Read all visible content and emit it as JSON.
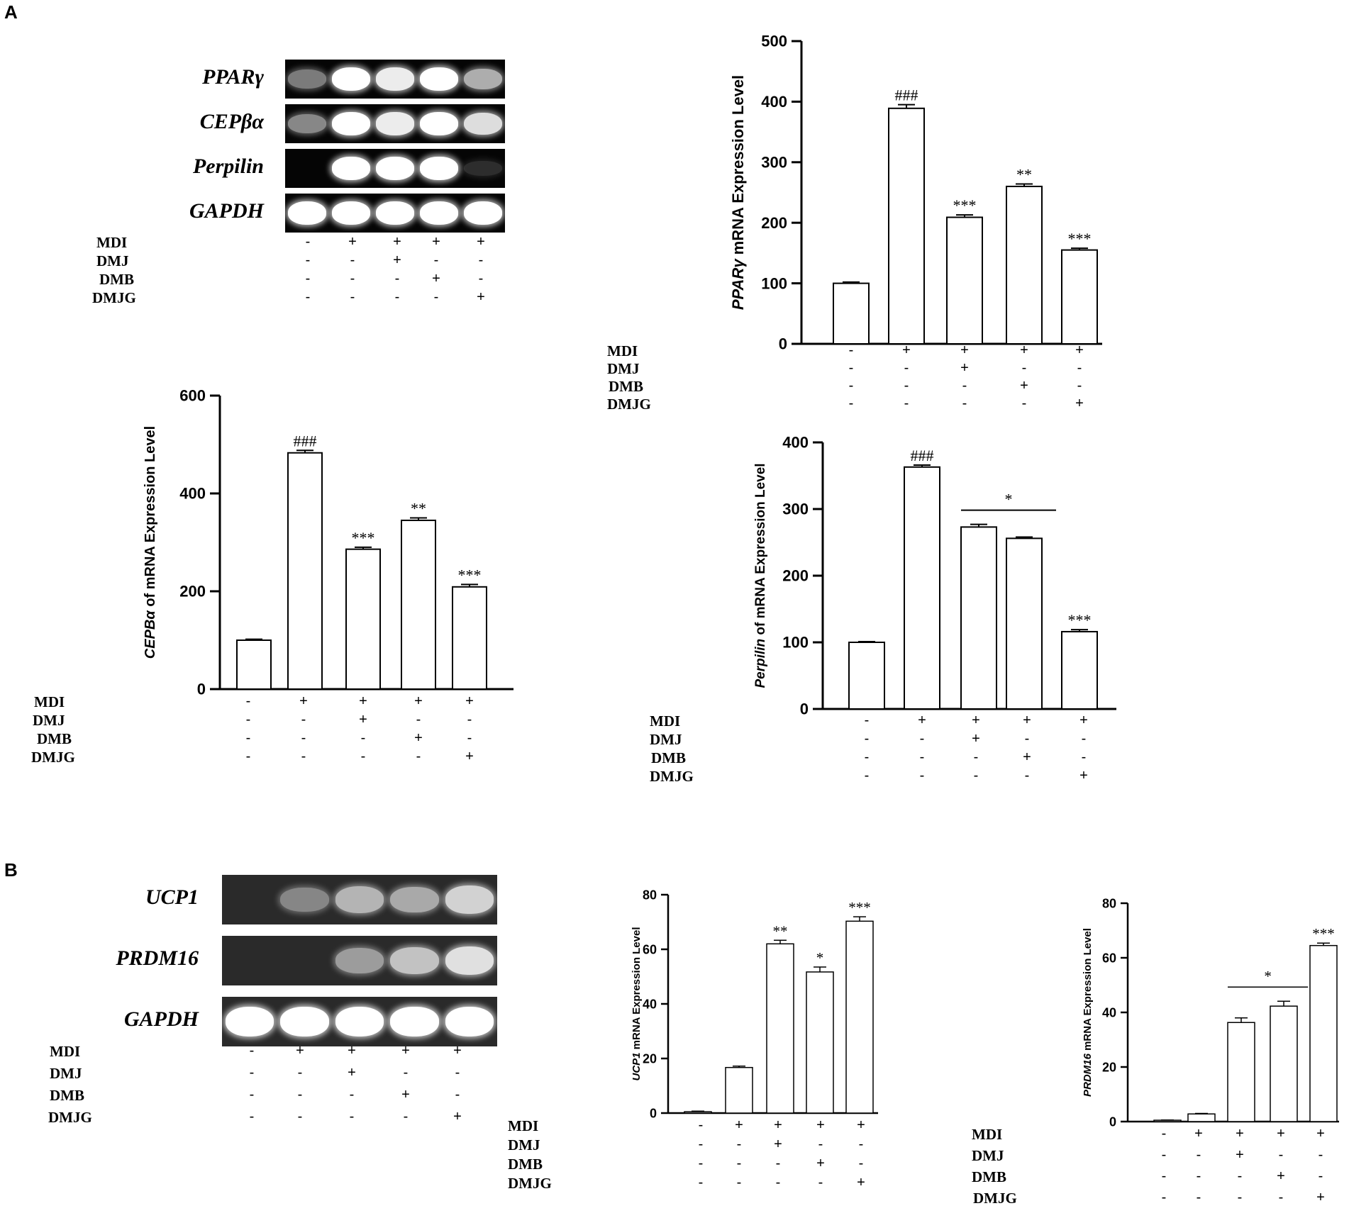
{
  "panels": {
    "a_label": "A",
    "b_label": "B"
  },
  "treatment_labels": [
    "MDI",
    "DMJ",
    "DMB",
    "DMJG"
  ],
  "treatment_matrix": [
    [
      "-",
      "+",
      "+",
      "+",
      "+"
    ],
    [
      "-",
      "-",
      "+",
      "-",
      "-"
    ],
    [
      "-",
      "-",
      "-",
      "+",
      "-"
    ],
    [
      "-",
      "-",
      "-",
      "-",
      "+"
    ]
  ],
  "gel_a": {
    "rows": [
      {
        "label": "PPARγ",
        "intensity": [
          0.55,
          1,
          0.95,
          1,
          0.75
        ]
      },
      {
        "label": "CEPβα",
        "intensity": [
          0.6,
          1,
          0.95,
          1,
          0.9
        ]
      },
      {
        "label": "Perpilin",
        "intensity": [
          0,
          1,
          1,
          1,
          0.15
        ]
      },
      {
        "label": "GAPDH",
        "intensity": [
          1,
          1,
          1,
          1,
          1
        ]
      }
    ]
  },
  "gel_b": {
    "rows": [
      {
        "label": "UCP1",
        "intensity": [
          0,
          0.55,
          0.75,
          0.7,
          0.85
        ]
      },
      {
        "label": "PRDM16",
        "intensity": [
          0,
          0,
          0.65,
          0.8,
          0.9
        ]
      },
      {
        "label": "GAPDH",
        "intensity": [
          1,
          1,
          1,
          1,
          1
        ]
      }
    ]
  },
  "chart_data": [
    {
      "type": "bar",
      "ylabel_italic": "PPARγ",
      "ylabel_rest": " mRNA Expression Level",
      "ylim": [
        0,
        500
      ],
      "yticks": [
        "0",
        "100",
        "200",
        "300",
        "400",
        "500"
      ],
      "values": [
        100,
        389,
        209,
        260,
        155
      ],
      "errors": [
        2,
        6,
        4,
        4,
        3
      ],
      "significance": [
        "",
        "###",
        "***",
        "**",
        "***"
      ],
      "bracket": null
    },
    {
      "type": "bar",
      "ylabel_italic": "CEPBα",
      "ylabel_rest": " of mRNA Expression Level",
      "ylim": [
        0,
        600
      ],
      "yticks": [
        "0",
        "200",
        "400",
        "600"
      ],
      "values": [
        100,
        483,
        286,
        345,
        209
      ],
      "errors": [
        2,
        5,
        4,
        5,
        5
      ],
      "significance": [
        "",
        "###",
        "***",
        "**",
        "***"
      ],
      "bracket": null
    },
    {
      "type": "bar",
      "ylabel_italic": "Perpilin",
      "ylabel_rest": " of mRNA Expression Level",
      "ylim": [
        0,
        400
      ],
      "yticks": [
        "0",
        "100",
        "200",
        "300",
        "400"
      ],
      "values": [
        100,
        363,
        273,
        256,
        116
      ],
      "errors": [
        1,
        3,
        4,
        2,
        3
      ],
      "significance": [
        "",
        "###",
        "",
        "",
        "***"
      ],
      "bracket": {
        "from": 2,
        "to": 3,
        "label": "*"
      }
    },
    {
      "type": "bar",
      "ylabel_italic": "UCP1",
      "ylabel_rest": " mRNA Expression Level",
      "ylim": [
        0,
        80
      ],
      "yticks": [
        "0",
        "20",
        "40",
        "60",
        "80"
      ],
      "values": [
        0.5,
        16.7,
        62,
        51.7,
        70.3
      ],
      "errors": [
        0.2,
        0.5,
        1.3,
        1.8,
        1.6
      ],
      "significance": [
        "",
        "",
        "**",
        "*",
        "***"
      ],
      "bracket": null
    },
    {
      "type": "bar",
      "ylabel_italic": "PRDM16",
      "ylabel_rest": " mRNA Expression Level",
      "ylim": [
        0,
        80
      ],
      "yticks": [
        "0",
        "20",
        "40",
        "60",
        "80"
      ],
      "values": [
        0.5,
        2.8,
        36.3,
        42.3,
        64.5
      ],
      "errors": [
        0.1,
        0.2,
        1.7,
        1.8,
        0.9
      ],
      "significance": [
        "",
        "",
        "",
        "",
        "***"
      ],
      "bracket": {
        "from": 2,
        "to": 3,
        "label": "*"
      }
    }
  ]
}
